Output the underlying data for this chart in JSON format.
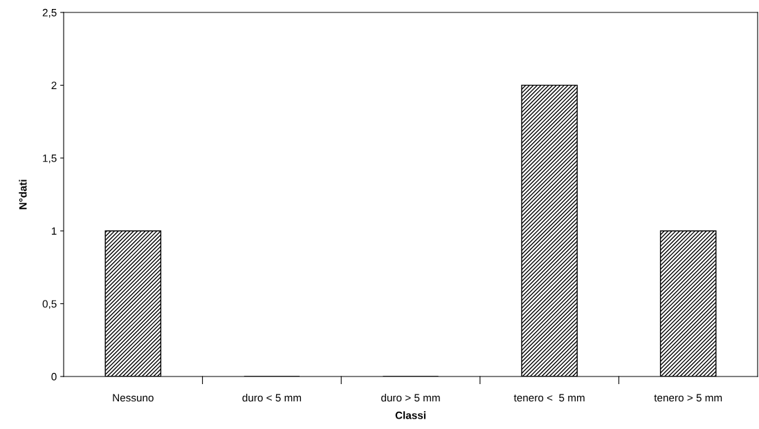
{
  "chart_data": {
    "type": "bar",
    "xlabel": "Classi",
    "ylabel": "N°dati",
    "categories": [
      "Nessuno",
      "duro < 5 mm",
      "duro > 5 mm",
      "tenero <  5 mm",
      "tenero > 5 mm"
    ],
    "values": [
      1,
      0,
      0,
      2,
      1
    ],
    "color": "#000000",
    "ylim": [
      0,
      2.5
    ],
    "yticks": [
      {
        "value": 0,
        "label": "0"
      },
      {
        "value": 0.5,
        "label": "0,5"
      },
      {
        "value": 1,
        "label": "1"
      },
      {
        "value": 1.5,
        "label": "1,5"
      },
      {
        "value": 2,
        "label": "2"
      },
      {
        "value": 2.5,
        "label": "2,5"
      }
    ],
    "grid": false,
    "legend": false
  }
}
